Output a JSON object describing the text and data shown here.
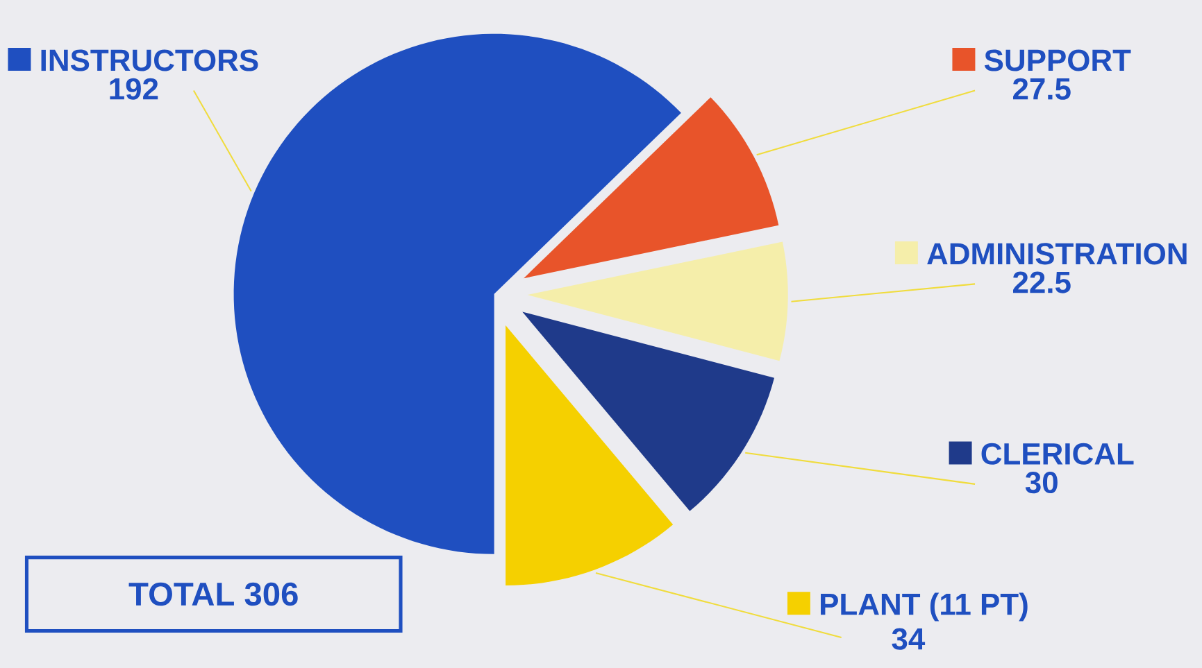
{
  "chart_data": {
    "type": "pie",
    "categories": [
      "INSTRUCTORS",
      "SUPPORT",
      "ADMINISTRATION",
      "CLERICAL",
      "PLANT (11 PT)"
    ],
    "values": [
      192,
      27.5,
      22.5,
      30,
      34
    ],
    "colors": [
      "#1f4fc0",
      "#e8542a",
      "#f5eeaa",
      "#1f3a8a",
      "#f5d000"
    ],
    "data_labels": true,
    "legend": "right",
    "annotations": [
      "TOTAL   306"
    ]
  }
}
